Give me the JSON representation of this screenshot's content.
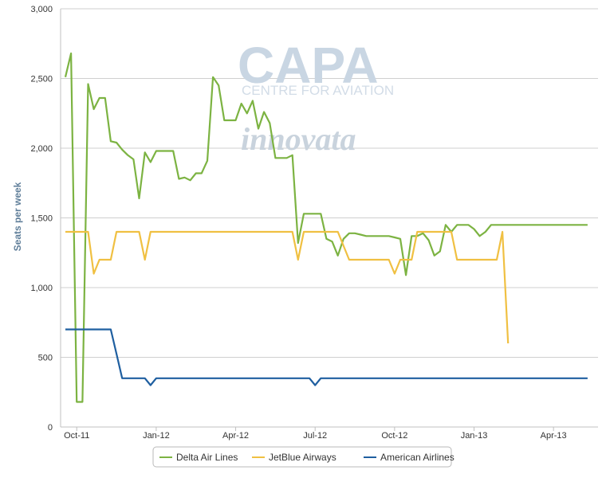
{
  "chart_data": {
    "type": "line",
    "title": "",
    "xlabel": "",
    "ylabel": "Seats per week",
    "ylim": [
      0,
      3000
    ],
    "yticks": [
      0,
      500,
      1000,
      1500,
      2000,
      2500,
      3000
    ],
    "ytick_labels": [
      "0",
      "500",
      "1,000",
      "1,500",
      "2,000",
      "2,500",
      "3,000"
    ],
    "xlim": [
      0,
      93
    ],
    "xticks": [
      {
        "label": "Oct-11",
        "x": 2
      },
      {
        "label": "Jan-12",
        "x": 16
      },
      {
        "label": "Apr-12",
        "x": 30
      },
      {
        "label": "Jul-12",
        "x": 44
      },
      {
        "label": "Oct-12",
        "x": 58
      },
      {
        "label": "Jan-13",
        "x": 72
      },
      {
        "label": "Apr-13",
        "x": 86
      }
    ],
    "grid": "horizontal",
    "legend_position": "bottom",
    "watermark": {
      "main": "CAPA",
      "sub": "CENTRE FOR AVIATION",
      "secondary": "innovata"
    },
    "series": [
      {
        "name": "Delta Air Lines",
        "color": "#7cb342",
        "points": [
          [
            0,
            2510
          ],
          [
            1,
            2680
          ],
          [
            2,
            180
          ],
          [
            3,
            180
          ],
          [
            4,
            2460
          ],
          [
            5,
            2280
          ],
          [
            6,
            2360
          ],
          [
            7,
            2360
          ],
          [
            8,
            2050
          ],
          [
            9,
            2040
          ],
          [
            10,
            1990
          ],
          [
            11,
            1950
          ],
          [
            12,
            1920
          ],
          [
            13,
            1640
          ],
          [
            14,
            1970
          ],
          [
            15,
            1900
          ],
          [
            16,
            1980
          ],
          [
            17,
            1980
          ],
          [
            18,
            1980
          ],
          [
            19,
            1980
          ],
          [
            20,
            1780
          ],
          [
            21,
            1790
          ],
          [
            22,
            1770
          ],
          [
            23,
            1820
          ],
          [
            24,
            1820
          ],
          [
            25,
            1910
          ],
          [
            26,
            2510
          ],
          [
            27,
            2450
          ],
          [
            28,
            2200
          ],
          [
            29,
            2200
          ],
          [
            30,
            2200
          ],
          [
            31,
            2320
          ],
          [
            32,
            2250
          ],
          [
            33,
            2340
          ],
          [
            34,
            2140
          ],
          [
            35,
            2260
          ],
          [
            36,
            2180
          ],
          [
            37,
            1930
          ],
          [
            38,
            1930
          ],
          [
            39,
            1930
          ],
          [
            40,
            1950
          ],
          [
            41,
            1320
          ],
          [
            42,
            1530
          ],
          [
            43,
            1530
          ],
          [
            44,
            1530
          ],
          [
            45,
            1530
          ],
          [
            46,
            1350
          ],
          [
            47,
            1330
          ],
          [
            48,
            1230
          ],
          [
            49,
            1350
          ],
          [
            50,
            1390
          ],
          [
            51,
            1390
          ],
          [
            52,
            1380
          ],
          [
            53,
            1370
          ],
          [
            54,
            1370
          ],
          [
            55,
            1370
          ],
          [
            56,
            1370
          ],
          [
            57,
            1370
          ],
          [
            58,
            1360
          ],
          [
            59,
            1350
          ],
          [
            60,
            1090
          ],
          [
            61,
            1370
          ],
          [
            62,
            1370
          ],
          [
            63,
            1390
          ],
          [
            64,
            1340
          ],
          [
            65,
            1230
          ],
          [
            66,
            1260
          ],
          [
            67,
            1450
          ],
          [
            68,
            1400
          ],
          [
            69,
            1450
          ],
          [
            70,
            1450
          ],
          [
            71,
            1450
          ],
          [
            72,
            1420
          ],
          [
            73,
            1370
          ],
          [
            74,
            1400
          ],
          [
            75,
            1450
          ],
          [
            76,
            1450
          ],
          [
            77,
            1450
          ],
          [
            78,
            1450
          ],
          [
            79,
            1450
          ],
          [
            80,
            1450
          ],
          [
            81,
            1450
          ],
          [
            82,
            1450
          ],
          [
            83,
            1450
          ],
          [
            84,
            1450
          ],
          [
            85,
            1450
          ],
          [
            86,
            1450
          ],
          [
            87,
            1450
          ],
          [
            88,
            1450
          ],
          [
            89,
            1450
          ],
          [
            90,
            1450
          ],
          [
            91,
            1450
          ],
          [
            92,
            1450
          ]
        ]
      },
      {
        "name": "JetBlue Airways",
        "color": "#f0c042",
        "points": [
          [
            0,
            1400
          ],
          [
            1,
            1400
          ],
          [
            2,
            1400
          ],
          [
            3,
            1400
          ],
          [
            4,
            1400
          ],
          [
            5,
            1100
          ],
          [
            6,
            1200
          ],
          [
            7,
            1200
          ],
          [
            8,
            1200
          ],
          [
            9,
            1400
          ],
          [
            10,
            1400
          ],
          [
            11,
            1400
          ],
          [
            12,
            1400
          ],
          [
            13,
            1400
          ],
          [
            14,
            1200
          ],
          [
            15,
            1400
          ],
          [
            16,
            1400
          ],
          [
            17,
            1400
          ],
          [
            18,
            1400
          ],
          [
            19,
            1400
          ],
          [
            20,
            1400
          ],
          [
            21,
            1400
          ],
          [
            22,
            1400
          ],
          [
            23,
            1400
          ],
          [
            24,
            1400
          ],
          [
            25,
            1400
          ],
          [
            26,
            1400
          ],
          [
            27,
            1400
          ],
          [
            28,
            1400
          ],
          [
            29,
            1400
          ],
          [
            30,
            1400
          ],
          [
            31,
            1400
          ],
          [
            32,
            1400
          ],
          [
            33,
            1400
          ],
          [
            34,
            1400
          ],
          [
            35,
            1400
          ],
          [
            36,
            1400
          ],
          [
            37,
            1400
          ],
          [
            38,
            1400
          ],
          [
            39,
            1400
          ],
          [
            40,
            1400
          ],
          [
            41,
            1200
          ],
          [
            42,
            1400
          ],
          [
            43,
            1400
          ],
          [
            44,
            1400
          ],
          [
            45,
            1400
          ],
          [
            46,
            1400
          ],
          [
            47,
            1400
          ],
          [
            48,
            1400
          ],
          [
            49,
            1300
          ],
          [
            50,
            1200
          ],
          [
            51,
            1200
          ],
          [
            52,
            1200
          ],
          [
            53,
            1200
          ],
          [
            54,
            1200
          ],
          [
            55,
            1200
          ],
          [
            56,
            1200
          ],
          [
            57,
            1200
          ],
          [
            58,
            1100
          ],
          [
            59,
            1200
          ],
          [
            60,
            1200
          ],
          [
            61,
            1200
          ],
          [
            62,
            1400
          ],
          [
            63,
            1400
          ],
          [
            64,
            1400
          ],
          [
            65,
            1400
          ],
          [
            66,
            1400
          ],
          [
            67,
            1400
          ],
          [
            68,
            1400
          ],
          [
            69,
            1200
          ],
          [
            70,
            1200
          ],
          [
            71,
            1200
          ],
          [
            72,
            1200
          ],
          [
            73,
            1200
          ],
          [
            74,
            1200
          ],
          [
            75,
            1200
          ],
          [
            76,
            1200
          ],
          [
            77,
            1400
          ],
          [
            78,
            600
          ]
        ]
      },
      {
        "name": "American Airlines",
        "color": "#1f5fa0",
        "points": [
          [
            0,
            700
          ],
          [
            1,
            700
          ],
          [
            2,
            700
          ],
          [
            3,
            700
          ],
          [
            4,
            700
          ],
          [
            5,
            700
          ],
          [
            6,
            700
          ],
          [
            7,
            700
          ],
          [
            8,
            700
          ],
          [
            9,
            525
          ],
          [
            10,
            350
          ],
          [
            11,
            350
          ],
          [
            12,
            350
          ],
          [
            13,
            350
          ],
          [
            14,
            350
          ],
          [
            15,
            300
          ],
          [
            16,
            350
          ],
          [
            17,
            350
          ],
          [
            18,
            350
          ],
          [
            19,
            350
          ],
          [
            20,
            350
          ],
          [
            21,
            350
          ],
          [
            22,
            350
          ],
          [
            23,
            350
          ],
          [
            24,
            350
          ],
          [
            25,
            350
          ],
          [
            26,
            350
          ],
          [
            27,
            350
          ],
          [
            28,
            350
          ],
          [
            29,
            350
          ],
          [
            30,
            350
          ],
          [
            31,
            350
          ],
          [
            32,
            350
          ],
          [
            33,
            350
          ],
          [
            34,
            350
          ],
          [
            35,
            350
          ],
          [
            36,
            350
          ],
          [
            37,
            350
          ],
          [
            38,
            350
          ],
          [
            39,
            350
          ],
          [
            40,
            350
          ],
          [
            41,
            350
          ],
          [
            42,
            350
          ],
          [
            43,
            350
          ],
          [
            44,
            300
          ],
          [
            45,
            350
          ],
          [
            46,
            350
          ],
          [
            47,
            350
          ],
          [
            48,
            350
          ],
          [
            49,
            350
          ],
          [
            50,
            350
          ],
          [
            51,
            350
          ],
          [
            52,
            350
          ],
          [
            53,
            350
          ],
          [
            54,
            350
          ],
          [
            55,
            350
          ],
          [
            56,
            350
          ],
          [
            57,
            350
          ],
          [
            58,
            350
          ],
          [
            59,
            350
          ],
          [
            60,
            350
          ],
          [
            61,
            350
          ],
          [
            62,
            350
          ],
          [
            63,
            350
          ],
          [
            64,
            350
          ],
          [
            65,
            350
          ],
          [
            66,
            350
          ],
          [
            67,
            350
          ],
          [
            68,
            350
          ],
          [
            69,
            350
          ],
          [
            70,
            350
          ],
          [
            71,
            350
          ],
          [
            72,
            350
          ],
          [
            73,
            350
          ],
          [
            74,
            350
          ],
          [
            75,
            350
          ],
          [
            76,
            350
          ],
          [
            77,
            350
          ],
          [
            78,
            350
          ],
          [
            79,
            350
          ],
          [
            80,
            350
          ],
          [
            81,
            350
          ],
          [
            82,
            350
          ],
          [
            83,
            350
          ],
          [
            84,
            350
          ],
          [
            85,
            350
          ],
          [
            86,
            350
          ],
          [
            87,
            350
          ],
          [
            88,
            350
          ],
          [
            89,
            350
          ],
          [
            90,
            350
          ],
          [
            91,
            350
          ],
          [
            92,
            350
          ]
        ]
      }
    ]
  }
}
